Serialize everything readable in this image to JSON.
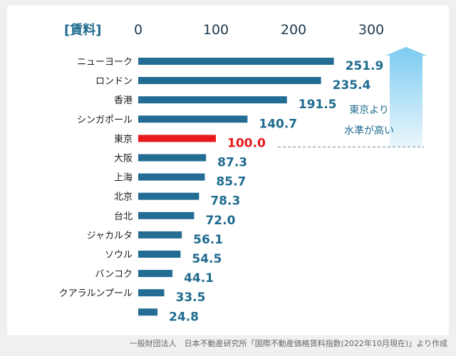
{
  "chart_data": {
    "type": "bar",
    "orientation": "horizontal",
    "unit_label": "[賃料]",
    "categories": [
      "ニューヨーク",
      "ロンドン",
      "香港",
      "シンガポール",
      "東京",
      "大阪",
      "上海",
      "北京",
      "台北",
      "ジャカルタ",
      "ソウル",
      "バンコク",
      "クアラルンプール",
      ""
    ],
    "values": [
      251.9,
      235.4,
      191.5,
      140.7,
      100.0,
      87.3,
      85.7,
      78.3,
      72.0,
      56.1,
      54.5,
      44.1,
      33.5,
      24.8
    ],
    "value_labels": [
      "251.9",
      "235.4",
      "191.5",
      "140.7",
      "100.0",
      "87.3",
      "85.7",
      "78.3",
      "72.0",
      "56.1",
      "54.5",
      "44.1",
      "33.5",
      "24.8"
    ],
    "xticks": [
      "0",
      "100",
      "200",
      "300"
    ],
    "xlim": [
      0,
      360
    ],
    "highlight_category": "東京",
    "annotation": {
      "line1": "東京より",
      "line2": "水準が高い"
    },
    "colors": {
      "bar": "#236d94",
      "highlight": "#e8191a",
      "label": "#1f6b8f",
      "arrow_top": "#7ccbf0",
      "arrow_bottom": "#eaf6fc"
    }
  },
  "footer": "一般財団法人　日本不動産研究所「国際不動産価格賃料指数(2022年10月現在)」より作成"
}
